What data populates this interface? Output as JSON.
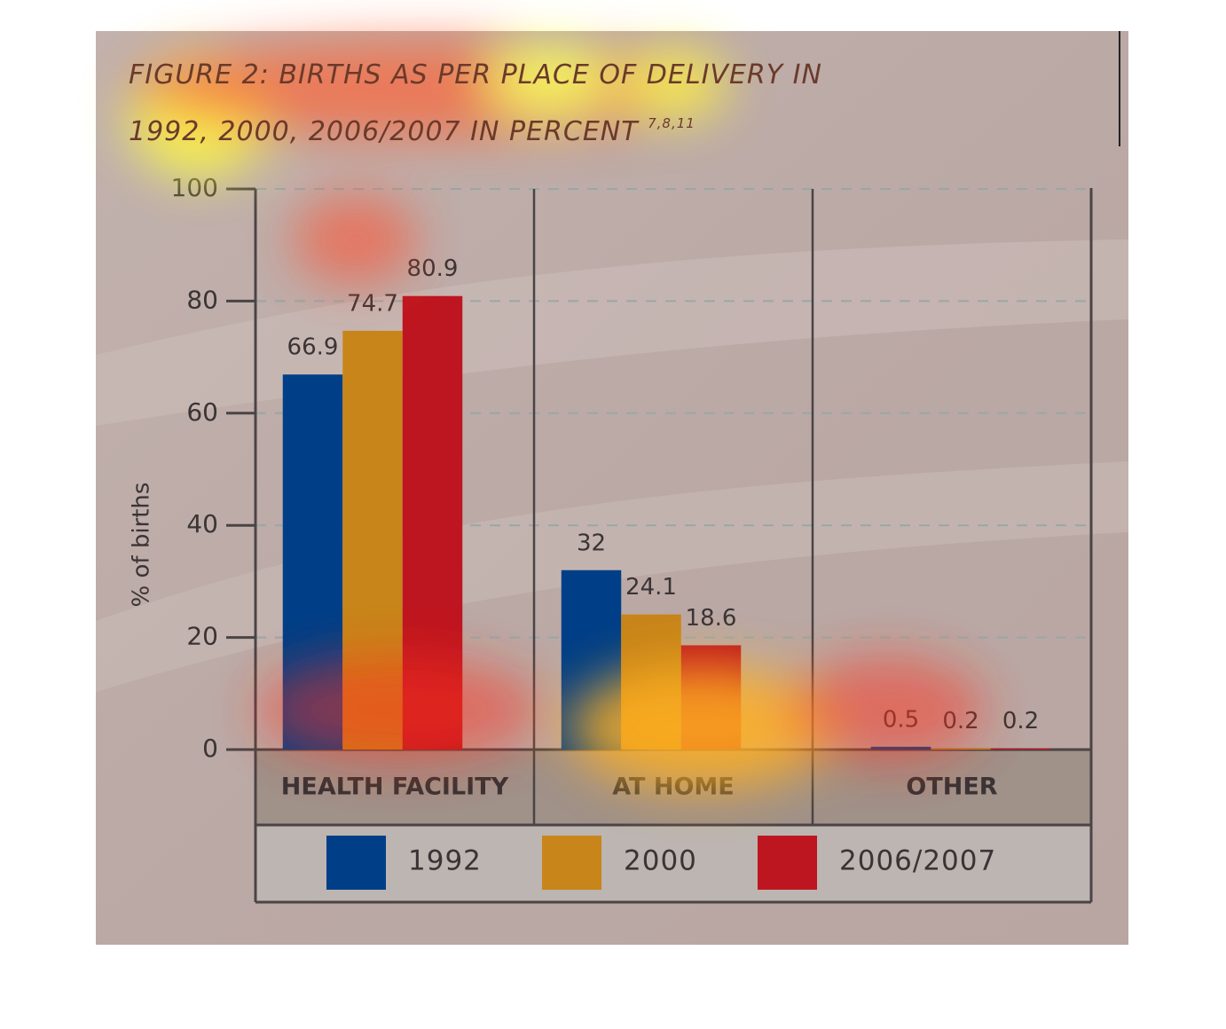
{
  "chart_data": {
    "type": "bar",
    "title": "FIGURE 2: BIRTHS AS PER PLACE OF DELIVERY IN 1992, 2000, 2006/2007 IN PERCENT",
    "title_note": "7,8,11",
    "y_label": "% of births",
    "categories": [
      "HEALTH FACILITY",
      "AT HOME",
      "OTHER"
    ],
    "series": [
      {
        "name": "1992",
        "color": "#003f87",
        "values": [
          66.9,
          32,
          0.5
        ]
      },
      {
        "name": "2000",
        "color": "#c8851a",
        "values": [
          74.7,
          24.1,
          0.2
        ]
      },
      {
        "name": "2006/2007",
        "color": "#be1620",
        "values": [
          80.9,
          18.6,
          0.2
        ]
      }
    ],
    "ylim": [
      0,
      100
    ],
    "yticks": [
      0,
      20,
      40,
      60,
      80,
      100
    ],
    "grid": true
  }
}
